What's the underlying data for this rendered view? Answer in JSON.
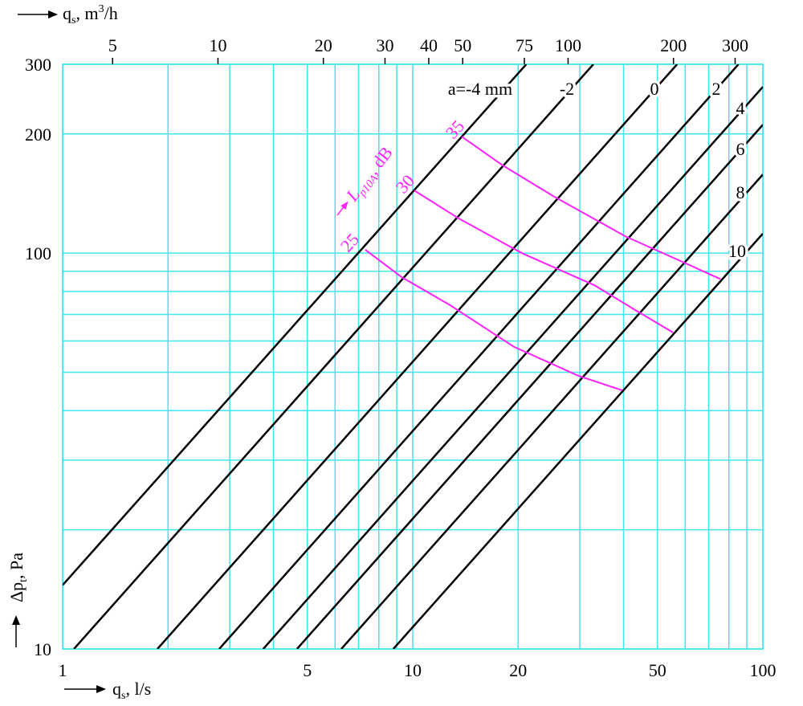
{
  "chart_data": {
    "type": "nomogram",
    "xscale": "log",
    "yscale": "log",
    "xlim": [
      1,
      100
    ],
    "ylim": [
      10,
      300
    ],
    "xticks": [
      1,
      5,
      10,
      20,
      50,
      100
    ],
    "xgrid": [
      2,
      3,
      4,
      6,
      7,
      8,
      9,
      30,
      40,
      60,
      70,
      80,
      90
    ],
    "yticks": [
      10,
      100,
      200,
      300
    ],
    "ygrid": [
      20,
      30,
      40,
      50,
      60,
      70,
      80,
      90
    ],
    "x2lim": [
      3.6,
      360
    ],
    "x2ticks": [
      5,
      10,
      20,
      30,
      40,
      50,
      75,
      100,
      200,
      300
    ],
    "grid": true,
    "grid_color": "#3fe6ee",
    "xlabel": {
      "main": "q",
      "sub": "s",
      "unit": ", l/s"
    },
    "x2label": {
      "main": "q",
      "sub": "s",
      "unit": ", m",
      "sup": "3",
      "unit2": "/h"
    },
    "ylabel": {
      "main": "Δp",
      "sub": "t",
      "unit": ", Pa"
    },
    "curve_label": {
      "main": "L",
      "sub": "p10A",
      "unit": ", dB"
    },
    "series": [
      {
        "name": "a=-4 mm",
        "color": "#000000",
        "x": [
          1,
          21.1
        ],
        "y": [
          14.5,
          300
        ]
      },
      {
        "name": "-2",
        "color": "#000000",
        "x": [
          1.077,
          32.8
        ],
        "y": [
          10,
          300
        ]
      },
      {
        "name": "0",
        "color": "#000000",
        "x": [
          1.865,
          56.9
        ],
        "y": [
          10,
          300
        ]
      },
      {
        "name": "2",
        "color": "#000000",
        "x": [
          2.8,
          85.2
        ],
        "y": [
          10,
          300
        ]
      },
      {
        "name": "4",
        "color": "#000000",
        "x": [
          3.74,
          100
        ],
        "y": [
          10,
          263
        ]
      },
      {
        "name": "6",
        "color": "#000000",
        "x": [
          4.67,
          100
        ],
        "y": [
          10,
          211
        ]
      },
      {
        "name": "8",
        "color": "#000000",
        "x": [
          6.25,
          100
        ],
        "y": [
          10,
          158
        ]
      },
      {
        "name": "10",
        "color": "#000000",
        "x": [
          8.8,
          100
        ],
        "y": [
          10,
          112
        ]
      }
    ],
    "curves": [
      {
        "name": "35",
        "color": "#ff22ff",
        "x": [
          13.8,
          18,
          25.3,
          40.7,
          59,
          75.6
        ],
        "y": [
          197,
          167,
          139,
          110,
          95,
          86
        ]
      },
      {
        "name": "30",
        "color": "#ff22ff",
        "x": [
          10.1,
          13.4,
          20.5,
          33,
          43,
          55.4
        ],
        "y": [
          144,
          123,
          100,
          83,
          72,
          63
        ]
      },
      {
        "name": "25",
        "color": "#ff22ff",
        "x": [
          7.32,
          9.29,
          12.75,
          19.45,
          29.7,
          39.7
        ],
        "y": [
          102,
          87,
          74,
          58,
          49,
          45
        ]
      }
    ]
  }
}
